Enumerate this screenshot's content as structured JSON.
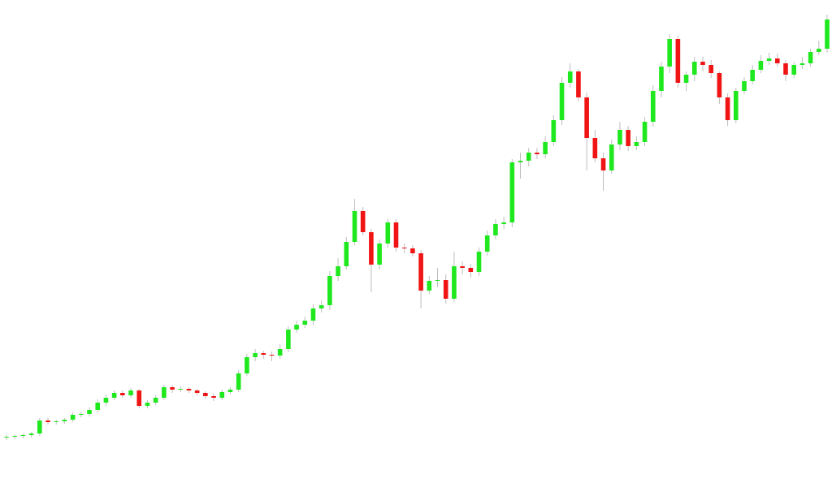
{
  "chart_data": {
    "type": "candlestick",
    "up_color": "#1fe81f",
    "down_color": "#f01414",
    "wick_color": "#bdbdbd",
    "ylim": [
      5,
      600
    ],
    "open": [
      61,
      62,
      63,
      64,
      66,
      82,
      80,
      81,
      83,
      89,
      90,
      95,
      104,
      110,
      116,
      113,
      119,
      100,
      104,
      110,
      123,
      120,
      121,
      119,
      116,
      112,
      110,
      117,
      120,
      140,
      160,
      165,
      163,
      162,
      170,
      194,
      200,
      205,
      220,
      224,
      260,
      272,
      302,
      340,
      314,
      274,
      300,
      326,
      295,
      294,
      288,
      242,
      254,
      255,
      232,
      272,
      270,
      265,
      290,
      310,
      324,
      326,
      400,
      402,
      412,
      410,
      425,
      452,
      498,
      512,
      480,
      430,
      405,
      390,
      422,
      440,
      420,
      425,
      450,
      488,
      518,
      552,
      498,
      508,
      524,
      520,
      510,
      480,
      452,
      488,
      500,
      514,
      525,
      528,
      522,
      508,
      520,
      522,
      536,
      540
    ],
    "high": [
      64,
      65,
      66,
      68,
      85,
      85,
      83,
      85,
      92,
      93,
      98,
      108,
      114,
      119,
      119,
      122,
      121,
      107,
      113,
      126,
      126,
      124,
      123,
      121,
      118,
      115,
      120,
      123,
      144,
      164,
      170,
      168,
      167,
      176,
      198,
      205,
      210,
      225,
      230,
      266,
      282,
      308,
      355,
      345,
      318,
      305,
      330,
      330,
      300,
      298,
      292,
      260,
      270,
      262,
      290,
      278,
      275,
      295,
      316,
      330,
      333,
      404,
      412,
      418,
      418,
      432,
      458,
      505,
      522,
      515,
      486,
      440,
      412,
      428,
      450,
      445,
      432,
      456,
      495,
      524,
      558,
      556,
      512,
      530,
      530,
      526,
      512,
      485,
      492,
      505,
      520,
      532,
      535,
      534,
      526,
      524,
      530,
      540,
      550,
      582
    ],
    "low": [
      58,
      59,
      60,
      61,
      63,
      77,
      77,
      78,
      80,
      86,
      87,
      92,
      100,
      107,
      110,
      110,
      97,
      97,
      101,
      107,
      116,
      117,
      116,
      113,
      109,
      106,
      107,
      114,
      117,
      137,
      155,
      158,
      155,
      158,
      166,
      190,
      196,
      200,
      215,
      218,
      254,
      268,
      298,
      310,
      240,
      268,
      295,
      290,
      288,
      284,
      220,
      238,
      246,
      226,
      228,
      262,
      258,
      260,
      285,
      305,
      318,
      320,
      380,
      395,
      404,
      405,
      420,
      446,
      492,
      475,
      390,
      400,
      365,
      386,
      415,
      414,
      415,
      420,
      444,
      480,
      510,
      492,
      488,
      500,
      512,
      504,
      472,
      445,
      448,
      484,
      496,
      510,
      520,
      518,
      500,
      504,
      515,
      518,
      532,
      535
    ],
    "close": [
      62,
      63,
      64,
      66,
      82,
      80,
      81,
      83,
      89,
      90,
      95,
      104,
      110,
      116,
      113,
      119,
      100,
      104,
      110,
      123,
      120,
      121,
      119,
      116,
      112,
      110,
      117,
      120,
      140,
      160,
      165,
      163,
      162,
      170,
      194,
      200,
      205,
      220,
      224,
      260,
      272,
      302,
      340,
      314,
      274,
      300,
      326,
      295,
      294,
      288,
      242,
      254,
      255,
      232,
      272,
      270,
      265,
      290,
      310,
      324,
      326,
      400,
      402,
      412,
      410,
      425,
      452,
      498,
      512,
      480,
      430,
      405,
      390,
      422,
      440,
      420,
      425,
      450,
      488,
      518,
      552,
      498,
      508,
      524,
      520,
      510,
      480,
      452,
      488,
      500,
      514,
      525,
      528,
      522,
      508,
      520,
      522,
      536,
      540,
      576
    ]
  }
}
